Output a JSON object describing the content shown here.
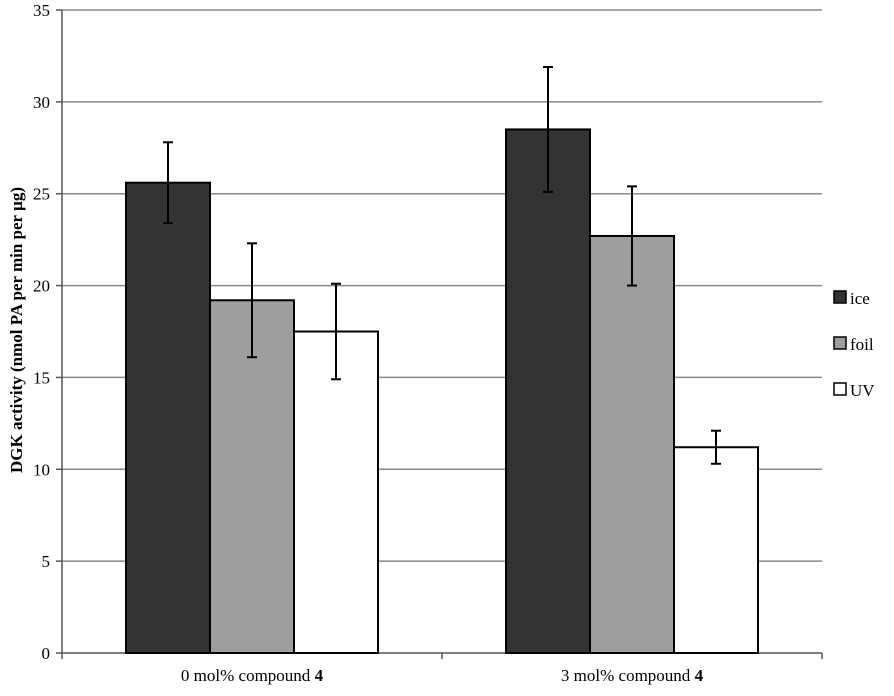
{
  "chart_data": {
    "type": "bar",
    "categories": [
      {
        "text": "0 mol% compound ",
        "bold": "4"
      },
      {
        "text": "3 mol% compound ",
        "bold": "4"
      }
    ],
    "series": [
      {
        "name": "ice",
        "color": "#333333",
        "values": [
          25.6,
          28.5
        ],
        "errors": [
          2.2,
          3.4
        ]
      },
      {
        "name": "foil",
        "color": "#9e9e9e",
        "values": [
          19.2,
          22.7
        ],
        "errors": [
          3.1,
          2.7
        ]
      },
      {
        "name": "UV",
        "color": "#ffffff",
        "values": [
          17.5,
          11.2
        ],
        "errors": [
          2.6,
          0.9
        ]
      }
    ],
    "ylabel": "DGK activity (nmol PA per min per µg)",
    "xlabel": "",
    "ylim": [
      0,
      35
    ],
    "yticks": [
      0,
      5,
      10,
      15,
      20,
      25,
      30,
      35
    ],
    "grid": true,
    "legend_position": "right"
  }
}
